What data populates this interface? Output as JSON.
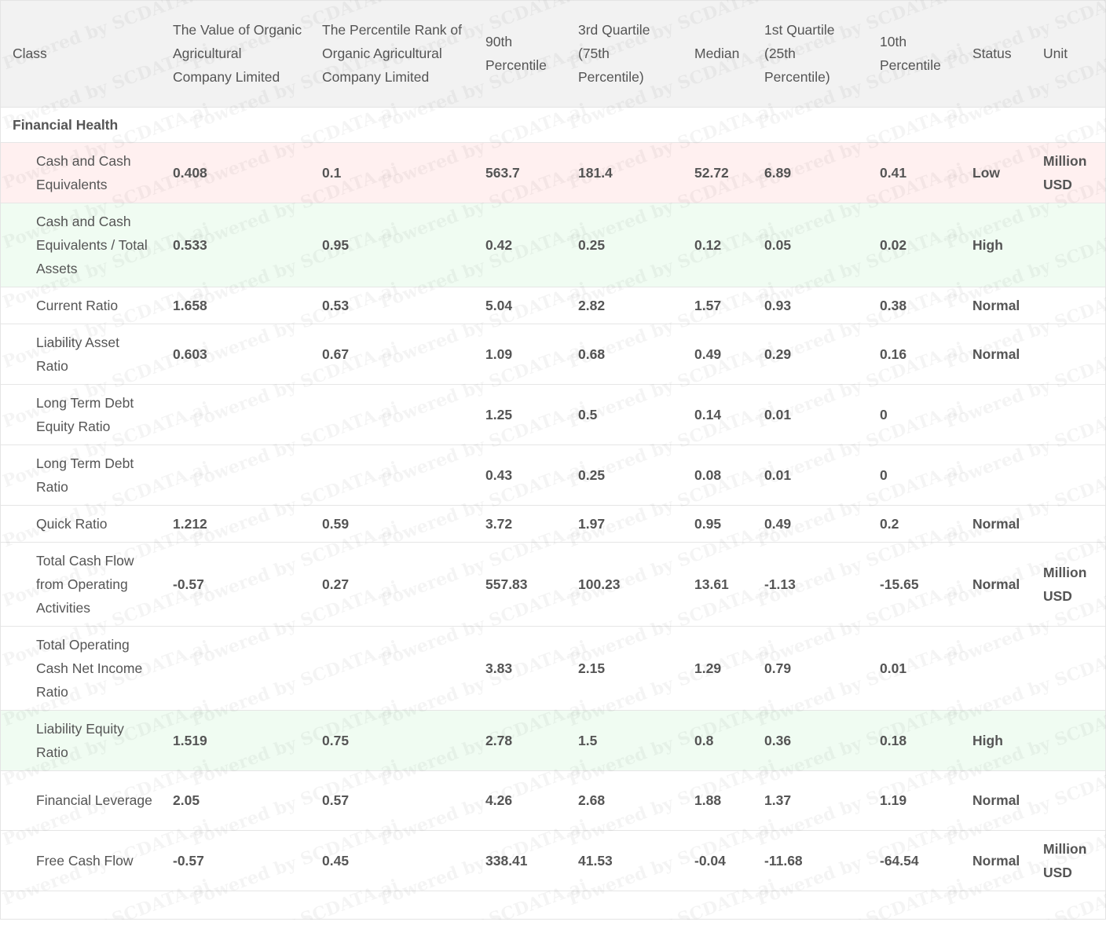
{
  "watermark": "Powered by SCDATA.ai",
  "columns": [
    "Class",
    "The Value of Organic Agricultural Company Limited",
    "The Percentile Rank of Organic Agricultural Company Limited",
    "90th Percentile",
    "3rd Quartile (75th Percentile)",
    "Median",
    "1st Quartile (25th Percentile)",
    "10th Percentile",
    "Status",
    "Unit"
  ],
  "section": "Financial Health",
  "colors": {
    "low_row": "#fff0f0",
    "high_row": "#f0fcf2",
    "header_bg": "#f2f2f2"
  },
  "rows": [
    {
      "cls": "Cash and Cash Equivalents",
      "value": "0.408",
      "rank": "0.1",
      "p90": "563.7",
      "q3": "181.4",
      "median": "52.72",
      "q1": "6.89",
      "p10": "0.41",
      "status": "Low",
      "unit": "Million USD",
      "highlight": "low"
    },
    {
      "cls": "Cash and Cash Equivalents / Total Assets",
      "value": "0.533",
      "rank": "0.95",
      "p90": "0.42",
      "q3": "0.25",
      "median": "0.12",
      "q1": "0.05",
      "p10": "0.02",
      "status": "High",
      "unit": "",
      "highlight": "high"
    },
    {
      "cls": "Current Ratio",
      "value": "1.658",
      "rank": "0.53",
      "p90": "5.04",
      "q3": "2.82",
      "median": "1.57",
      "q1": "0.93",
      "p10": "0.38",
      "status": "Normal",
      "unit": "",
      "highlight": ""
    },
    {
      "cls": "Liability Asset Ratio",
      "value": "0.603",
      "rank": "0.67",
      "p90": "1.09",
      "q3": "0.68",
      "median": "0.49",
      "q1": "0.29",
      "p10": "0.16",
      "status": "Normal",
      "unit": "",
      "highlight": ""
    },
    {
      "cls": "Long Term Debt Equity Ratio",
      "value": "",
      "rank": "",
      "p90": "1.25",
      "q3": "0.5",
      "median": "0.14",
      "q1": "0.01",
      "p10": "0",
      "status": "",
      "unit": "",
      "highlight": ""
    },
    {
      "cls": "Long Term Debt Ratio",
      "value": "",
      "rank": "",
      "p90": "0.43",
      "q3": "0.25",
      "median": "0.08",
      "q1": "0.01",
      "p10": "0",
      "status": "",
      "unit": "",
      "highlight": ""
    },
    {
      "cls": "Quick Ratio",
      "value": "1.212",
      "rank": "0.59",
      "p90": "3.72",
      "q3": "1.97",
      "median": "0.95",
      "q1": "0.49",
      "p10": "0.2",
      "status": "Normal",
      "unit": "",
      "highlight": ""
    },
    {
      "cls": "Total Cash Flow from Operating Activities",
      "value": "-0.57",
      "rank": "0.27",
      "p90": "557.83",
      "q3": "100.23",
      "median": "13.61",
      "q1": "-1.13",
      "p10": "-15.65",
      "status": "Normal",
      "unit": "Million USD",
      "highlight": ""
    },
    {
      "cls": "Total Operating Cash Net Income Ratio",
      "value": "",
      "rank": "",
      "p90": "3.83",
      "q3": "2.15",
      "median": "1.29",
      "q1": "0.79",
      "p10": "0.01",
      "status": "",
      "unit": "",
      "highlight": ""
    },
    {
      "cls": "Liability Equity Ratio",
      "value": "1.519",
      "rank": "0.75",
      "p90": "2.78",
      "q3": "1.5",
      "median": "0.8",
      "q1": "0.36",
      "p10": "0.18",
      "status": "High",
      "unit": "",
      "highlight": "high"
    },
    {
      "cls": "Financial Leverage",
      "value": "2.05",
      "rank": "0.57",
      "p90": "4.26",
      "q3": "2.68",
      "median": "1.88",
      "q1": "1.37",
      "p10": "1.19",
      "status": "Normal",
      "unit": "",
      "highlight": ""
    },
    {
      "cls": "Free Cash Flow",
      "value": "-0.57",
      "rank": "0.45",
      "p90": "338.41",
      "q3": "41.53",
      "median": "-0.04",
      "q1": "-11.68",
      "p10": "-64.54",
      "status": "Normal",
      "unit": "Million USD",
      "highlight": ""
    }
  ]
}
